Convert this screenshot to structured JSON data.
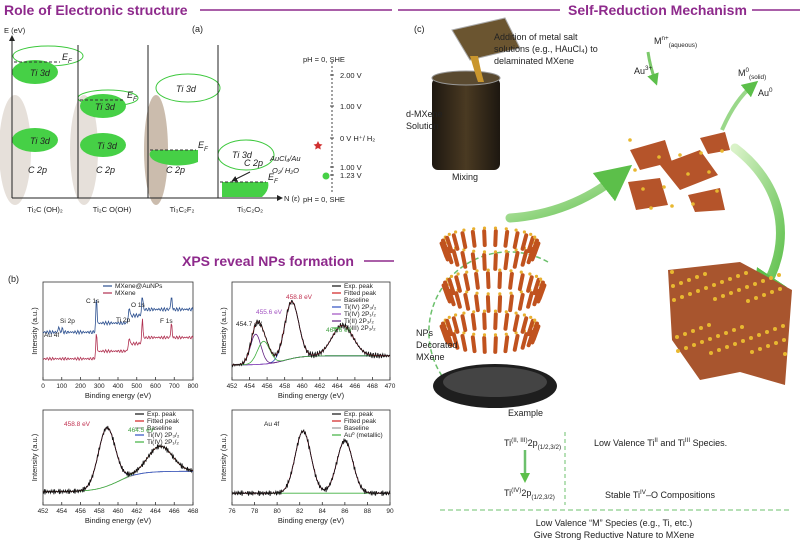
{
  "panel_a": {
    "heading": "Role of Electronic structure",
    "label": "(a)",
    "energy_axis": "E (eV)",
    "dos_axis": "N (ε)",
    "fermi": {
      "base": "E",
      "sub": "F"
    },
    "ti3d": "Ti 3d",
    "c2p": "C 2p",
    "materials": [
      "Ti₂C (OH)₂",
      "Ti₂C O(OH)",
      "Ti₃C₂F₂",
      "Ti₃C₂O₂"
    ],
    "scale_top": "pH = 0, SHE",
    "scale_bottom": "pH = 0, SHE",
    "potentials": [
      "2.00 V",
      "1.00 V",
      "0 V H⁺/ H₂",
      "1.00 V",
      "1.23 V"
    ],
    "couples": [
      "AuCl₄/Au",
      "O₂/ H₂O"
    ]
  },
  "panel_b": {
    "heading": "XPS reveal NPs formation",
    "label": "(b)",
    "x_title": "Binding energy (eV)",
    "y_title": "Intensity (a.u.)",
    "plots": [
      {
        "xticks": [
          0,
          100,
          200,
          300,
          400,
          500,
          600,
          700,
          800
        ],
        "legend": [
          "MXene@AuNPs",
          "MXene"
        ],
        "annotations": [
          "Au 4f",
          "Si 2p",
          "C 1s",
          "Ti 2p",
          "O 1s",
          "F 1s"
        ]
      },
      {
        "xticks": [
          452,
          454,
          456,
          458,
          460,
          462,
          464,
          466,
          468,
          470
        ],
        "legend": [
          "Exp. peak",
          "Fitted peak",
          "Baseline",
          "Ti(IV) 2P₃/₂",
          "Ti(IV) 2P₁/₂",
          "Ti(II) 2P₃/₂",
          "Ti(III) 2P₃/₂"
        ],
        "annotations": [
          "454.7 eV",
          "455.6 eV",
          "458.8 eV",
          "464.6 eV"
        ]
      },
      {
        "xticks": [
          452,
          454,
          456,
          458,
          460,
          462,
          464,
          466,
          468
        ],
        "legend": [
          "Exp. peak",
          "Fitted peak",
          "Baseline",
          "Ti(IV) 2P₃/₂",
          "Ti(IV) 2P₁/₂"
        ],
        "annotations": [
          "458.8 eV",
          "464.5 eV"
        ]
      },
      {
        "xticks": [
          76,
          78,
          80,
          82,
          84,
          86,
          88,
          90
        ],
        "legend": [
          "Exp. peak",
          "Fitted peak",
          "Baseline",
          "Au⁰ (metallic)"
        ],
        "annotations": [
          "Au 4f"
        ]
      }
    ]
  },
  "panel_c": {
    "heading": "Self-Reduction Mechanism",
    "label": "(c)",
    "addition": [
      "Addition of metal salt",
      "solutions (e.g., HAuCl₄) to",
      "delaminated MXene"
    ],
    "solution": [
      "d-MXene",
      "Solution"
    ],
    "mixing": "Mixing",
    "ion": {
      "base": "M",
      "sup": "n+",
      "sub": "(aqueous)"
    },
    "au3": {
      "base": "Au",
      "sup": "3+"
    },
    "solid": {
      "base": "M",
      "sup": "0",
      "sub": "(solid)"
    },
    "au0": {
      "base": "Au",
      "sup": "0"
    },
    "decorated": [
      "NPs",
      "Decorated",
      "MXene"
    ],
    "example": "Example",
    "species": [
      {
        "base": "Ti",
        "sup": "(II, III)",
        "mid": "2p",
        "sub": "(1/2,3/2)"
      },
      {
        "base": "Ti",
        "sup": "(IV)",
        "mid": "2p",
        "sub": "(1/2,3/2)"
      }
    ],
    "low_valence": {
      "a": "Low Valence Ti",
      "s1": "II",
      "b": " and Ti",
      "s2": "III",
      "c": " Species."
    },
    "stable": {
      "a": "Stable Ti",
      "s": "IV",
      "b": "–O Compositions"
    },
    "conclusion": [
      "Low Valence “M” Species (e.g., Ti, etc.)",
      "Give Strong Reductive Nature to MXene"
    ]
  }
}
